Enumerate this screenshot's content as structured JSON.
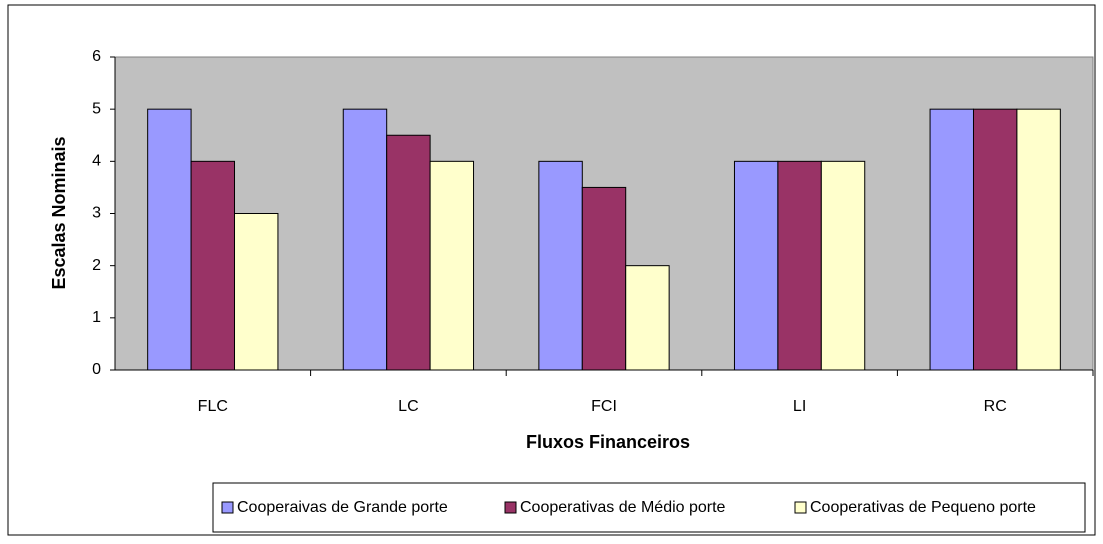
{
  "chart_data": {
    "type": "bar",
    "x_label": "Fluxos Financeiros",
    "y_label": "Escalas Nominais",
    "categories": [
      "FLC",
      "LC",
      "FCI",
      "LI",
      "RC"
    ],
    "series": [
      {
        "name": "Cooperaivas de Grande porte",
        "color": "#9999ff",
        "values": [
          5,
          5,
          4,
          4,
          5
        ]
      },
      {
        "name": "Cooperativas de Médio porte",
        "color": "#993366",
        "values": [
          4,
          4.5,
          3.5,
          4,
          5
        ]
      },
      {
        "name": "Cooperativas de Pequeno porte",
        "color": "#ffffcc",
        "values": [
          3,
          4,
          2,
          4,
          5
        ]
      }
    ],
    "ylim": [
      0,
      6
    ],
    "yticks": [
      0,
      1,
      2,
      3,
      4,
      5,
      6
    ],
    "grid": false,
    "plot_background": "#c0c0c0",
    "legend": "bottom"
  }
}
